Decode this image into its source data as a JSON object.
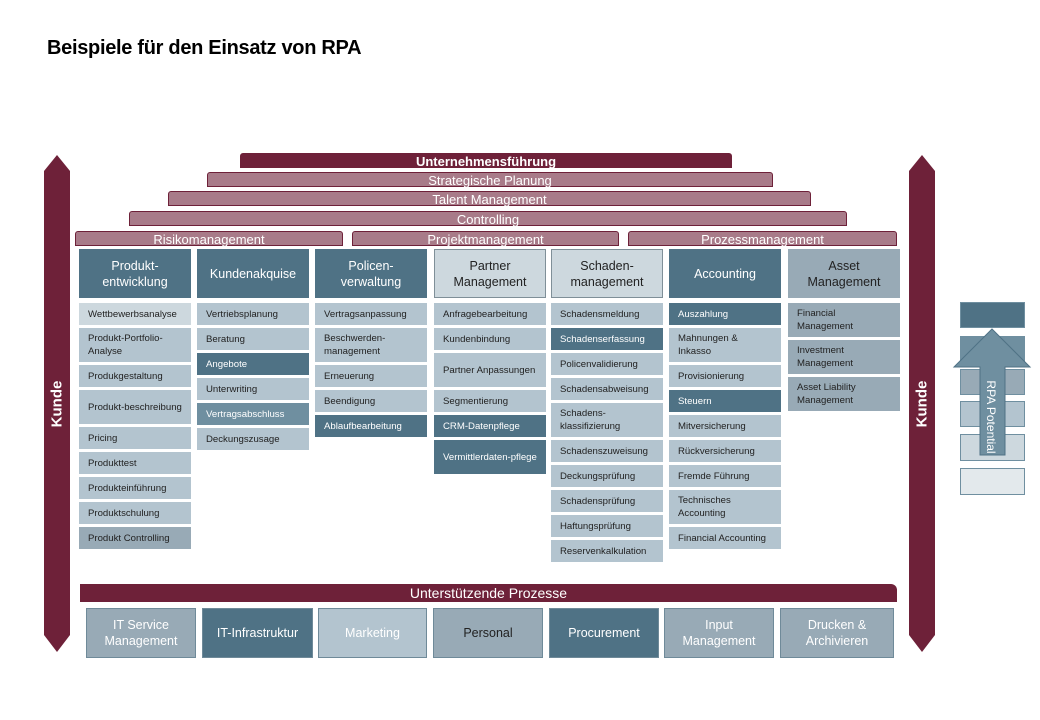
{
  "title": "Beispiele für den Einsatz von RPA",
  "colors": {
    "maroon": "#6e2139",
    "rose": "#a87b89",
    "level1": "#4f7285",
    "level2": "#6f8fa0",
    "level3": "#98aab6",
    "level4": "#b3c4cf",
    "level5": "#cdd8de",
    "level6": "#e3e9ec"
  },
  "bands": {
    "unternehmensfuehrung": "Unternehmensführung",
    "strategisch": "Strategische Planung",
    "talent": "Talent Management",
    "controlling": "Controlling",
    "risiko": "Risikomanagement",
    "projekt": "Projektmanagement",
    "prozess": "Prozessmanagement"
  },
  "pillars": {
    "left": "Kunde",
    "right": "Kunde"
  },
  "columns": [
    {
      "title": "Produkt-\nentwicklung",
      "level": "L1",
      "items": [
        {
          "t": "Wettbewerbsanalyse",
          "l": "L5"
        },
        {
          "t": "Produkt-Portfolio-Analyse",
          "l": "L4",
          "two": true
        },
        {
          "t": "Produkgestaltung",
          "l": "L4"
        },
        {
          "t": "Produkt-beschreibung",
          "l": "L4",
          "two": true
        },
        {
          "t": "Pricing",
          "l": "L4"
        },
        {
          "t": "Produkttest",
          "l": "L4"
        },
        {
          "t": "Produkteinführung",
          "l": "L4"
        },
        {
          "t": "Produktschulung",
          "l": "L4"
        },
        {
          "t": "Produkt Controlling",
          "l": "L3"
        }
      ]
    },
    {
      "title": "Kundenakquise",
      "level": "L1",
      "items": [
        {
          "t": "Vertriebsplanung",
          "l": "L4"
        },
        {
          "t": "Beratung",
          "l": "L4"
        },
        {
          "t": "Angebote",
          "l": "L1"
        },
        {
          "t": "Unterwriting",
          "l": "L4"
        },
        {
          "t": "Vertragsabschluss",
          "l": "L2"
        },
        {
          "t": "Deckungszusage",
          "l": "L4"
        }
      ]
    },
    {
      "title": "Policen-\nverwaltung",
      "level": "L1",
      "items": [
        {
          "t": "Vertragsanpassung",
          "l": "L4"
        },
        {
          "t": "Beschwerden-management",
          "l": "L4",
          "two": true
        },
        {
          "t": "Erneuerung",
          "l": "L4"
        },
        {
          "t": "Beendigung",
          "l": "L4"
        },
        {
          "t": "Ablaufbearbeitung",
          "l": "L1"
        }
      ]
    },
    {
      "title": "Partner\nManagement",
      "level": "L5",
      "items": [
        {
          "t": "Anfragebearbeitung",
          "l": "L4"
        },
        {
          "t": "Kundenbindung",
          "l": "L4"
        },
        {
          "t": "Partner Anpassungen",
          "l": "L4",
          "two": true
        },
        {
          "t": "Segmentierung",
          "l": "L4"
        },
        {
          "t": "CRM-Datenpflege",
          "l": "L1"
        },
        {
          "t": "Vermittlerdaten-pflege",
          "l": "L1",
          "two": true
        }
      ]
    },
    {
      "title": "Schaden-\nmanagement",
      "level": "L5",
      "items": [
        {
          "t": "Schadensmeldung",
          "l": "L4"
        },
        {
          "t": "Schadenserfassung",
          "l": "L1"
        },
        {
          "t": "Policenvalidierung",
          "l": "L4"
        },
        {
          "t": "Schadensabweisung",
          "l": "L4"
        },
        {
          "t": "Schadens-klassifizierung",
          "l": "L4",
          "two": true
        },
        {
          "t": "Schadenszuweisung",
          "l": "L4"
        },
        {
          "t": "Deckungsprüfung",
          "l": "L4"
        },
        {
          "t": "Schadensprüfung",
          "l": "L4"
        },
        {
          "t": "Haftungsprüfung",
          "l": "L4"
        },
        {
          "t": "Reservenkalkulation",
          "l": "L4"
        }
      ]
    },
    {
      "title": "Accounting",
      "level": "L1",
      "items": [
        {
          "t": "Auszahlung",
          "l": "L1"
        },
        {
          "t": "Mahnungen & Inkasso",
          "l": "L4",
          "two": true
        },
        {
          "t": "Provisionierung",
          "l": "L4"
        },
        {
          "t": "Steuern",
          "l": "L1"
        },
        {
          "t": "Mitversicherung",
          "l": "L4"
        },
        {
          "t": "Rückversicherung",
          "l": "L4"
        },
        {
          "t": "Fremde Führung",
          "l": "L4"
        },
        {
          "t": "Technisches Accounting",
          "l": "L4",
          "two": true
        },
        {
          "t": "Financial Accounting",
          "l": "L4"
        }
      ]
    },
    {
      "title": "Asset\nManagement",
      "level": "L3",
      "items": [
        {
          "t": "Financial Management",
          "l": "L3",
          "two": true
        },
        {
          "t": "Investment Management",
          "l": "L3",
          "two": true
        },
        {
          "t": "Asset Liability Management",
          "l": "L3",
          "two": true
        }
      ]
    }
  ],
  "support": {
    "title": "Unterstützende Prozesse",
    "items": [
      {
        "t": "IT Service Management",
        "l": "L3"
      },
      {
        "t": "IT-Infrastruktur",
        "l": "L1"
      },
      {
        "t": "Marketing",
        "l": "L4"
      },
      {
        "t": "Personal",
        "l": "L3",
        "dark": true
      },
      {
        "t": "Procurement",
        "l": "L1"
      },
      {
        "t": "Input Management",
        "l": "L3"
      },
      {
        "t": "Drucken & Archivieren",
        "l": "L3"
      }
    ]
  },
  "legend": {
    "label": "RPA Potential",
    "levels": [
      "L1",
      "L2",
      "L3",
      "L4",
      "L5",
      "L6"
    ]
  }
}
